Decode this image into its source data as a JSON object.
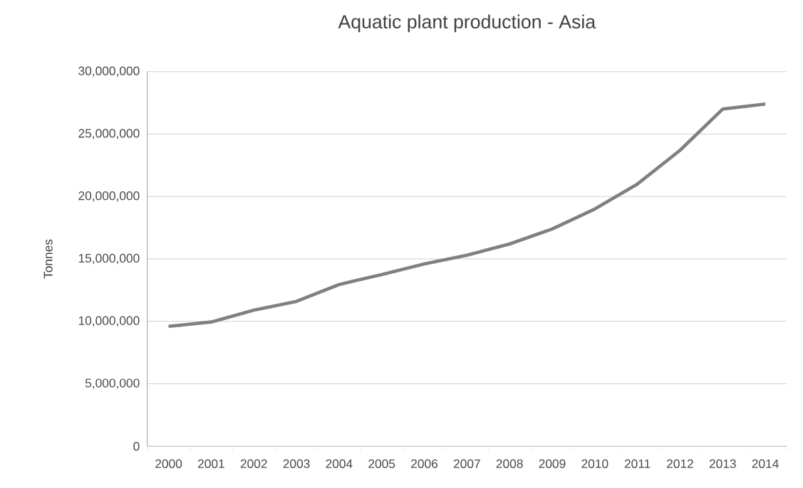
{
  "chart_data": {
    "type": "line",
    "title": "Aquatic plant production - Asia",
    "ylabel": "Tonnes",
    "categories": [
      "2000",
      "2001",
      "2002",
      "2003",
      "2004",
      "2005",
      "2006",
      "2007",
      "2008",
      "2009",
      "2010",
      "2011",
      "2012",
      "2013",
      "2014"
    ],
    "series": [
      {
        "color": "#808080",
        "values": [
          9600000,
          9950000,
          10900000,
          11600000,
          12950000,
          13750000,
          14600000,
          15300000,
          16200000,
          17400000,
          19000000,
          21000000,
          23700000,
          27000000,
          27400000
        ]
      }
    ],
    "ylim": [
      0,
      30000000
    ],
    "yticks": [
      {
        "value": 0,
        "label": "0"
      },
      {
        "value": 5000000,
        "label": "5,000,000"
      },
      {
        "value": 10000000,
        "label": "10,000,000"
      },
      {
        "value": 15000000,
        "label": "15,000,000"
      },
      {
        "value": 20000000,
        "label": "20,000,000"
      },
      {
        "value": 25000000,
        "label": "25,000,000"
      },
      {
        "value": 30000000,
        "label": "30,000,000"
      }
    ],
    "grid": "y",
    "marker": "none",
    "line_style": "solid"
  }
}
